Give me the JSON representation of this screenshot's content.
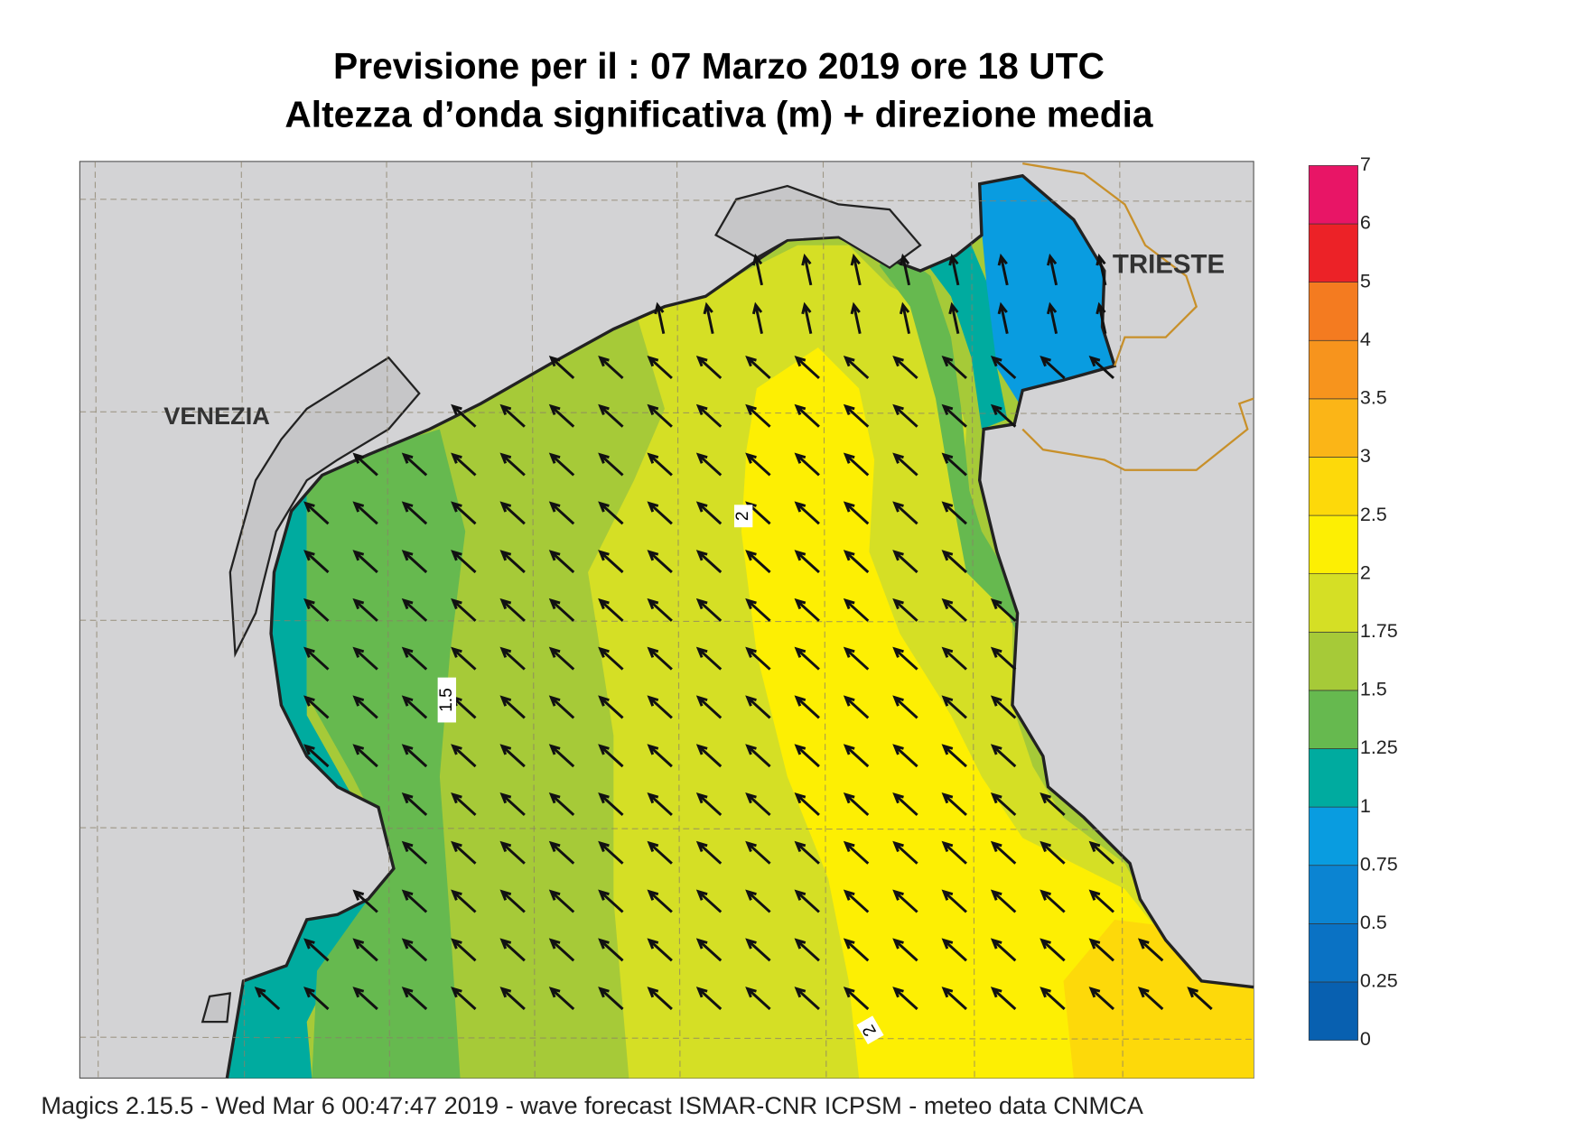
{
  "header": {
    "title": "Previsione per il  :  07   Marzo   2019   ore 18 UTC",
    "subtitle": "Altezza d’onda significativa (m) + direzione media"
  },
  "map": {
    "places": [
      "VENEZIA",
      "TRIESTE"
    ],
    "contour_labels": [
      "2",
      "1.5",
      "2"
    ]
  },
  "colorbar": {
    "levels": [
      {
        "label": "0",
        "color": "#0860b0"
      },
      {
        "label": "0.25",
        "color": "#0a72c4"
      },
      {
        "label": "0.5",
        "color": "#0b84d2"
      },
      {
        "label": "0.75",
        "color": "#099ce0"
      },
      {
        "label": "1",
        "color": "#00ab9f"
      },
      {
        "label": "1.25",
        "color": "#66b94f"
      },
      {
        "label": "1.5",
        "color": "#a6ca38"
      },
      {
        "label": "1.75",
        "color": "#d5df25"
      },
      {
        "label": "2",
        "color": "#fdef03"
      },
      {
        "label": "2.5",
        "color": "#fdd90a"
      },
      {
        "label": "3",
        "color": "#fbb517"
      },
      {
        "label": "3.5",
        "color": "#f7941d"
      },
      {
        "label": "4",
        "color": "#f47b20"
      },
      {
        "label": "5",
        "color": "#ec2227"
      },
      {
        "label": "6",
        "color": "#e81566"
      },
      {
        "label": "7",
        "color": null
      }
    ]
  },
  "footer": "Magics 2.15.5 - Wed Mar  6 00:47:47 2019 - wave forecast  ISMAR-CNR  ICPSM - meteo data   CNMCA"
}
